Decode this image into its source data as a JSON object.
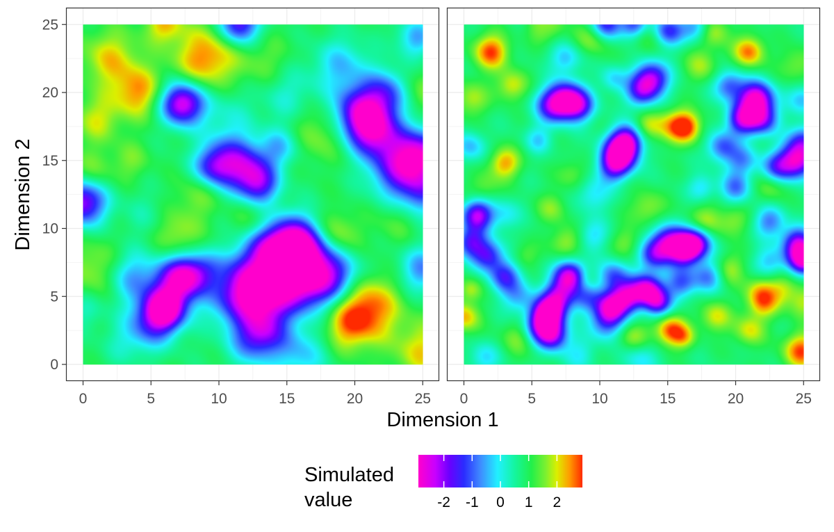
{
  "chart_data": {
    "type": "heatmap",
    "xlabel": "Dimension 1",
    "ylabel": "Dimension 2",
    "xlim": [
      0,
      25
    ],
    "ylim": [
      0,
      25
    ],
    "xticks": [
      "0",
      "5",
      "10",
      "15",
      "20",
      "25"
    ],
    "yticks": [
      "0",
      "5",
      "10",
      "15",
      "20",
      "25"
    ],
    "grid": true,
    "legend": {
      "title_line1": "Simulated",
      "title_line2": "value",
      "placement": "bottom",
      "colors": [
        "#ff00cc",
        "#c800ff",
        "#6a00ff",
        "#2b2bff",
        "#3f8cff",
        "#21f0ff",
        "#14f5a0",
        "#22f04a",
        "#7cf030",
        "#dcef00",
        "#ff9a00",
        "#ff2a00"
      ],
      "ticks": [
        "-2",
        "-1",
        "0",
        "1",
        "2"
      ],
      "tick_values": [
        -2,
        -1,
        0,
        1,
        2
      ],
      "range": [
        -2.9,
        2.9
      ]
    },
    "palette_stops": [
      {
        "v": -2.9,
        "c": "#ff00cc"
      },
      {
        "v": -2.3,
        "c": "#c800ff"
      },
      {
        "v": -1.8,
        "c": "#6a00ff"
      },
      {
        "v": -1.3,
        "c": "#2b2bff"
      },
      {
        "v": -0.7,
        "c": "#3f8cff"
      },
      {
        "v": -0.1,
        "c": "#21f0ff"
      },
      {
        "v": 0.5,
        "c": "#14f5a0"
      },
      {
        "v": 1.1,
        "c": "#22f04a"
      },
      {
        "v": 1.6,
        "c": "#7cf030"
      },
      {
        "v": 2.0,
        "c": "#dcef00"
      },
      {
        "v": 2.45,
        "c": "#ff9a00"
      },
      {
        "v": 2.9,
        "c": "#ff2a00"
      }
    ],
    "panels": [
      {
        "name": "left",
        "base": 0.9,
        "blobs": [
          [
            9,
            22.5,
            1.6,
            1.7
          ],
          [
            4,
            20,
            1.3,
            1.5
          ],
          [
            2,
            22.5,
            1.5,
            1.2
          ],
          [
            1,
            18,
            1.2,
            1.0
          ],
          [
            6,
            25,
            1.0,
            1.3
          ],
          [
            0.5,
            14,
            1.2,
            0.8
          ],
          [
            3.5,
            15,
            1.0,
            0.6
          ],
          [
            1,
            7,
            1.5,
            0.9
          ],
          [
            7,
            9.5,
            1.2,
            0.9
          ],
          [
            8.5,
            12.5,
            1.2,
            0.7
          ],
          [
            13.5,
            22,
            1.5,
            0.6
          ],
          [
            18.5,
            9.5,
            1.2,
            1.1
          ],
          [
            21,
            4.2,
            1.6,
            1.8
          ],
          [
            19.5,
            2.8,
            1.3,
            1.2
          ],
          [
            25,
            1,
            1.5,
            1.2
          ],
          [
            17.5,
            17,
            1.5,
            0.8
          ],
          [
            24.5,
            20,
            1.2,
            0.8
          ],
          [
            12.5,
            11,
            1.2,
            0.5
          ],
          [
            23,
            10.5,
            1.2,
            0.5
          ],
          [
            7.3,
            19.2,
            1.1,
            -3.6
          ],
          [
            20.5,
            18.5,
            1.4,
            -3.2
          ],
          [
            21.5,
            17,
            1.3,
            -2.4
          ],
          [
            22.5,
            20,
            1.2,
            -1.8
          ],
          [
            11,
            15,
            1.4,
            -2.2
          ],
          [
            9.5,
            14.5,
            1.0,
            -1.8
          ],
          [
            12.5,
            14,
            1.2,
            -1.8
          ],
          [
            13,
            13,
            1.0,
            -1.6
          ],
          [
            23.5,
            14.5,
            1.6,
            -2.8
          ],
          [
            25,
            15.5,
            1.3,
            -2.2
          ],
          [
            25,
            12.5,
            1.2,
            -1.4
          ],
          [
            0,
            12,
            1.2,
            -3.2
          ],
          [
            15.5,
            9,
            1.4,
            -3.0
          ],
          [
            16.5,
            8,
            1.3,
            -2.2
          ],
          [
            14,
            8.5,
            1.2,
            -2.0
          ],
          [
            12.5,
            7,
            1.5,
            -1.8
          ],
          [
            11.5,
            5,
            1.5,
            -2.4
          ],
          [
            13.5,
            5,
            1.4,
            -2.2
          ],
          [
            15.5,
            6,
            1.5,
            -2.4
          ],
          [
            17.5,
            6,
            1.4,
            -2.0
          ],
          [
            19,
            6.8,
            1.2,
            -1.2
          ],
          [
            6,
            4,
            1.0,
            -3.2
          ],
          [
            7.5,
            6.5,
            1.1,
            -2.8
          ],
          [
            6.5,
            5.5,
            1.4,
            -1.8
          ],
          [
            5,
            3,
            1.3,
            -1.8
          ],
          [
            3.5,
            6.5,
            1.3,
            -1.4
          ],
          [
            11.5,
            25,
            1.0,
            -2.8
          ],
          [
            13.5,
            2.5,
            1.2,
            -1.4
          ],
          [
            12.5,
            1.8,
            1.3,
            -1.6
          ],
          [
            16,
            0.8,
            1.4,
            -1.2
          ],
          [
            19,
            22,
            1.4,
            -1.2
          ],
          [
            15,
            20,
            1.5,
            -0.8
          ],
          [
            25,
            7,
            1.2,
            -1.6
          ],
          [
            9,
            7,
            1.0,
            -1.0
          ],
          [
            3,
            1.5,
            1.1,
            -0.5
          ],
          [
            10.5,
            18.5,
            1.5,
            -0.6
          ],
          [
            24.5,
            24,
            1.0,
            -1.4
          ],
          [
            0.2,
            4,
            1.0,
            -0.6
          ],
          [
            14.5,
            16,
            1.0,
            -1.2
          ],
          [
            4.5,
            11,
            1.2,
            -0.4
          ]
        ]
      },
      {
        "name": "right",
        "base": 0.8,
        "blobs": [
          [
            2,
            23,
            0.9,
            2.0
          ],
          [
            3.5,
            20.5,
            0.8,
            1.2
          ],
          [
            0.5,
            19.5,
            0.9,
            1.0
          ],
          [
            6,
            25,
            0.8,
            1.8
          ],
          [
            9.5,
            24,
            0.9,
            1.0
          ],
          [
            16.3,
            17.5,
            0.8,
            2.2
          ],
          [
            15,
            17.5,
            0.9,
            1.0
          ],
          [
            13.5,
            17.5,
            0.7,
            0.9
          ],
          [
            21,
            23,
            0.8,
            1.8
          ],
          [
            18.5,
            24.5,
            0.8,
            1.0
          ],
          [
            3,
            14.8,
            0.8,
            1.6
          ],
          [
            1.5,
            13,
            0.8,
            0.7
          ],
          [
            0,
            3.5,
            0.8,
            1.5
          ],
          [
            0.5,
            5.5,
            0.6,
            1.0
          ],
          [
            4,
            2,
            0.9,
            0.8
          ],
          [
            6.5,
            11.5,
            0.8,
            0.8
          ],
          [
            7.5,
            9,
            0.8,
            1.0
          ],
          [
            9,
            6,
            0.7,
            0.8
          ],
          [
            13.5,
            11.5,
            0.9,
            0.9
          ],
          [
            12,
            9,
            0.8,
            0.7
          ],
          [
            15.2,
            2.5,
            0.8,
            2.0
          ],
          [
            16.2,
            2,
            0.6,
            1.0
          ],
          [
            12.5,
            2,
            0.8,
            1.0
          ],
          [
            17.8,
            10.5,
            0.9,
            1.0
          ],
          [
            19.8,
            10.5,
            0.8,
            0.8
          ],
          [
            19.5,
            7,
            0.8,
            1.0
          ],
          [
            21.8,
            5.5,
            0.8,
            1.0
          ],
          [
            22,
            4.5,
            0.8,
            1.4
          ],
          [
            21,
            2.5,
            0.8,
            1.2
          ],
          [
            24.8,
            1,
            0.9,
            2.0
          ],
          [
            23.5,
            5.5,
            0.8,
            1.0
          ],
          [
            18.5,
            3.5,
            0.8,
            1.2
          ],
          [
            22.5,
            13,
            0.8,
            0.8
          ],
          [
            24.5,
            22,
            0.9,
            0.8
          ],
          [
            17.5,
            22,
            0.9,
            0.9
          ],
          [
            13.5,
            24,
            0.9,
            0.7
          ],
          [
            8,
            14,
            0.8,
            0.7
          ],
          [
            10.5,
            3,
            0.7,
            0.8
          ],
          [
            4.5,
            8,
            0.7,
            0.6
          ],
          [
            25,
            4.5,
            0.8,
            1.0
          ],
          [
            11.5,
            15.5,
            0.9,
            -3.8
          ],
          [
            12,
            16.5,
            0.8,
            -2.6
          ],
          [
            11,
            14.5,
            0.8,
            -1.8
          ],
          [
            13.8,
            21,
            0.9,
            -3.0
          ],
          [
            13,
            20,
            0.8,
            -1.8
          ],
          [
            7.5,
            19.5,
            0.9,
            -3.0
          ],
          [
            6.5,
            19,
            0.9,
            -2.2
          ],
          [
            8.5,
            19,
            0.8,
            -2.2
          ],
          [
            21.5,
            19.5,
            0.9,
            -3.8
          ],
          [
            20.5,
            18,
            0.8,
            -2.8
          ],
          [
            22,
            18,
            0.8,
            -2.2
          ],
          [
            19.5,
            20.5,
            0.8,
            -1.8
          ],
          [
            24.5,
            15,
            0.9,
            -3.4
          ],
          [
            23,
            14.5,
            0.8,
            -1.8
          ],
          [
            25,
            16.5,
            0.8,
            -1.8
          ],
          [
            16.3,
            8.5,
            0.8,
            -3.8
          ],
          [
            15,
            9,
            0.9,
            -2.8
          ],
          [
            17.2,
            9,
            0.8,
            -2.4
          ],
          [
            14,
            8,
            0.8,
            -2.0
          ],
          [
            16,
            6,
            0.8,
            -1.8
          ],
          [
            18,
            6.5,
            0.8,
            -1.6
          ],
          [
            7.8,
            6.5,
            0.8,
            -3.4
          ],
          [
            7,
            5,
            0.8,
            -2.6
          ],
          [
            6.2,
            3.8,
            0.8,
            -3.8
          ],
          [
            6.5,
            2.2,
            0.8,
            -3.0
          ],
          [
            5.5,
            2.8,
            0.8,
            -2.0
          ],
          [
            9,
            5,
            0.8,
            -1.6
          ],
          [
            10.8,
            4.2,
            0.8,
            -3.2
          ],
          [
            10.5,
            3,
            0.8,
            -2.4
          ],
          [
            12,
            5,
            0.8,
            -2.8
          ],
          [
            13.5,
            5.5,
            0.8,
            -3.4
          ],
          [
            14.3,
            4.5,
            0.7,
            -2.4
          ],
          [
            11,
            6.5,
            0.8,
            -1.8
          ],
          [
            1,
            11,
            0.8,
            -3.0
          ],
          [
            0.5,
            9,
            0.8,
            -2.2
          ],
          [
            1.8,
            8,
            0.8,
            -2.2
          ],
          [
            3,
            6.5,
            0.8,
            -2.0
          ],
          [
            4,
            5,
            0.9,
            -1.2
          ],
          [
            25,
            7.8,
            0.8,
            -3.8
          ],
          [
            24.5,
            9,
            0.8,
            -2.4
          ],
          [
            22.5,
            10.5,
            0.8,
            -1.6
          ],
          [
            6,
            25,
            0.6,
            -1.0
          ],
          [
            10.5,
            25,
            0.8,
            -2.4
          ],
          [
            12.5,
            25,
            0.7,
            -2.0
          ],
          [
            15,
            24.5,
            0.8,
            -2.2
          ],
          [
            17,
            24.8,
            0.7,
            -1.4
          ],
          [
            25,
            19.5,
            0.8,
            -1.2
          ],
          [
            19,
            16,
            0.8,
            -1.8
          ],
          [
            20.5,
            15,
            0.8,
            -1.4
          ],
          [
            9.5,
            12.5,
            0.9,
            -1.0
          ],
          [
            9.5,
            9.5,
            0.8,
            -1.0
          ],
          [
            3,
            11,
            0.8,
            -0.9
          ],
          [
            20,
            13,
            0.8,
            -1.6
          ],
          [
            17.5,
            13,
            0.7,
            -1.0
          ],
          [
            0.5,
            16,
            0.8,
            -1.2
          ],
          [
            13,
            0.5,
            0.9,
            -1.0
          ],
          [
            8.5,
            0.8,
            0.9,
            -0.8
          ],
          [
            1.5,
            0.5,
            0.8,
            -1.0
          ],
          [
            22.5,
            7.5,
            0.8,
            -1.2
          ],
          [
            5.5,
            16.5,
            0.7,
            -1.0
          ],
          [
            7.5,
            22.5,
            0.8,
            -1.2
          ],
          [
            11,
            21,
            0.7,
            -1.0
          ]
        ]
      }
    ]
  }
}
